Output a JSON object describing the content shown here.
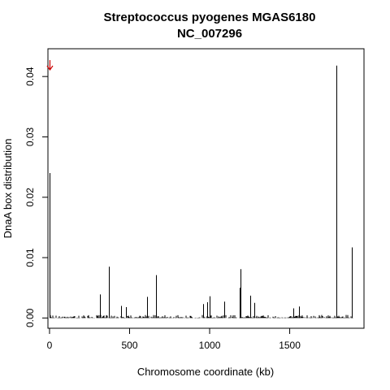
{
  "chart_data": {
    "type": "bar",
    "title": "Streptococcus pyogenes MGAS6180",
    "subtitle": "NC_007296",
    "xlabel": "Chromosome coordinate (kb)",
    "ylabel": "DnaA box distribution",
    "xlim": [
      -10,
      1964
    ],
    "ylim": [
      -0.0017,
      0.0446
    ],
    "xticks": [
      0,
      500,
      1000,
      1500
    ],
    "yticks": [
      0.0,
      0.01,
      0.02,
      0.03,
      0.04
    ],
    "ytick_labels": [
      "0.00",
      "0.01",
      "0.02",
      "0.03",
      "0.04"
    ],
    "grid": false,
    "marker": {
      "type": "arrow-down",
      "x": 0,
      "color": "#cc0000"
    },
    "peaks": {
      "x": [
        1,
        2,
        315,
        370,
        448,
        478,
        608,
        665,
        960,
        985,
        1000,
        1090,
        1190,
        1193,
        1255,
        1280,
        1520,
        1560,
        1790,
        1888,
        1890
      ],
      "y": [
        0.024,
        0.012,
        0.0039,
        0.0085,
        0.002,
        0.0018,
        0.0035,
        0.0071,
        0.0023,
        0.0026,
        0.0036,
        0.0027,
        0.005,
        0.0081,
        0.0037,
        0.0025,
        0.0016,
        0.0019,
        0.0418,
        0.0117,
        0.0028
      ]
    }
  }
}
